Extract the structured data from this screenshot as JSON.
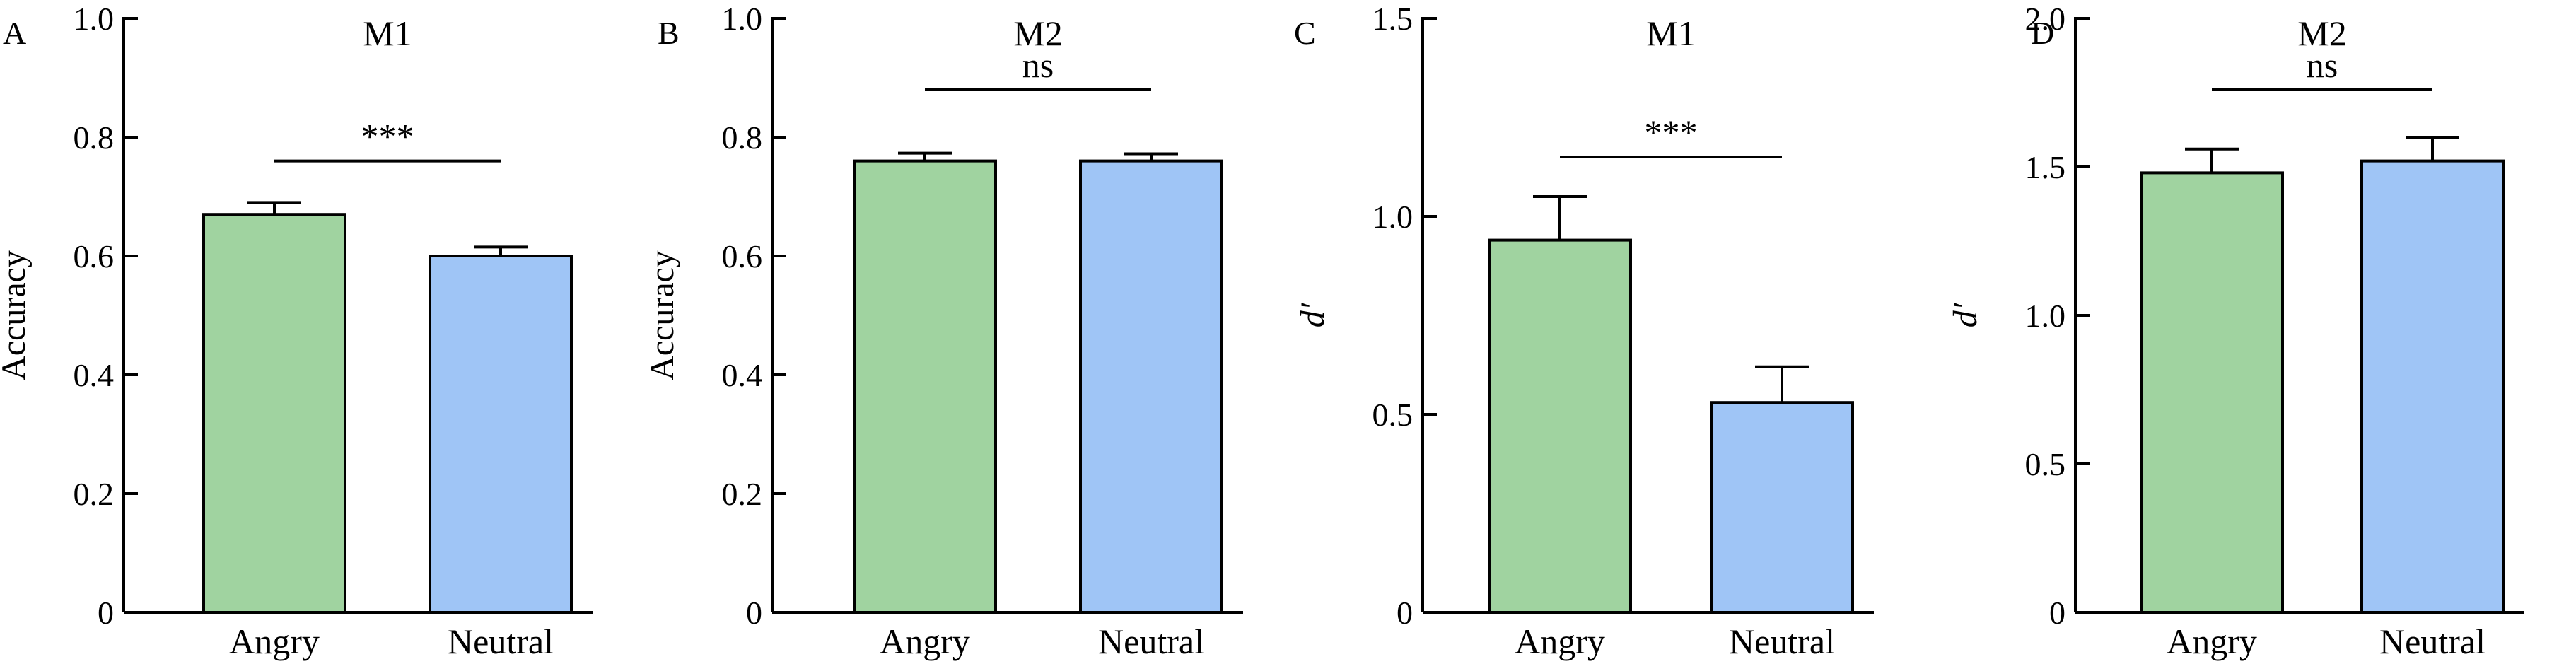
{
  "chart_data": [
    {
      "type": "bar",
      "panel": "A",
      "title": "M1",
      "ylabel": "Accuracy",
      "ylabel_italic": false,
      "categories": [
        "Angry",
        "Neutral"
      ],
      "values": [
        0.67,
        0.6
      ],
      "errors": [
        0.02,
        0.015
      ],
      "colors": [
        "#a0d3a0",
        "#9fc5f6"
      ],
      "ylim": [
        0,
        1.0
      ],
      "ticks": [
        0,
        0.2,
        0.4,
        0.6,
        0.8,
        1.0
      ],
      "tick_labels": [
        "0",
        "0.2",
        "0.4",
        "0.6",
        "0.8",
        "1.0"
      ],
      "significance": "***",
      "sig_level": 0.76
    },
    {
      "type": "bar",
      "panel": "B",
      "title": "M2",
      "ylabel": "Accuracy",
      "ylabel_italic": false,
      "categories": [
        "Angry",
        "Neutral"
      ],
      "values": [
        0.76,
        0.76
      ],
      "errors": [
        0.013,
        0.012
      ],
      "colors": [
        "#a0d3a0",
        "#9fc5f6"
      ],
      "ylim": [
        0,
        1.0
      ],
      "ticks": [
        0,
        0.2,
        0.4,
        0.6,
        0.8,
        1.0
      ],
      "tick_labels": [
        "0",
        "0.2",
        "0.4",
        "0.6",
        "0.8",
        "1.0"
      ],
      "significance": "ns",
      "sig_level": 0.88
    },
    {
      "type": "bar",
      "panel": "C",
      "title": "M1",
      "ylabel": "d′",
      "ylabel_italic": true,
      "categories": [
        "Angry",
        "Neutral"
      ],
      "values": [
        0.94,
        0.53
      ],
      "errors": [
        0.11,
        0.09
      ],
      "colors": [
        "#a0d3a0",
        "#9fc5f6"
      ],
      "ylim": [
        0,
        1.5
      ],
      "ticks": [
        0,
        0.5,
        1.0,
        1.5
      ],
      "tick_labels": [
        "0",
        "0.5",
        "1.0",
        "1.5"
      ],
      "significance": "***",
      "sig_level": 1.15
    },
    {
      "type": "bar",
      "panel": "D",
      "title": "M2",
      "ylabel": "d′",
      "ylabel_italic": true,
      "categories": [
        "Angry",
        "Neutral"
      ],
      "values": [
        1.48,
        1.52
      ],
      "errors": [
        0.08,
        0.08
      ],
      "colors": [
        "#a0d3a0",
        "#9fc5f6"
      ],
      "ylim": [
        0,
        2.0
      ],
      "ticks": [
        0,
        0.5,
        1.0,
        1.5,
        2.0
      ],
      "tick_labels": [
        "0",
        "0.5",
        "1.0",
        "1.5",
        "2.0"
      ],
      "significance": "ns",
      "sig_level": 1.76
    }
  ]
}
